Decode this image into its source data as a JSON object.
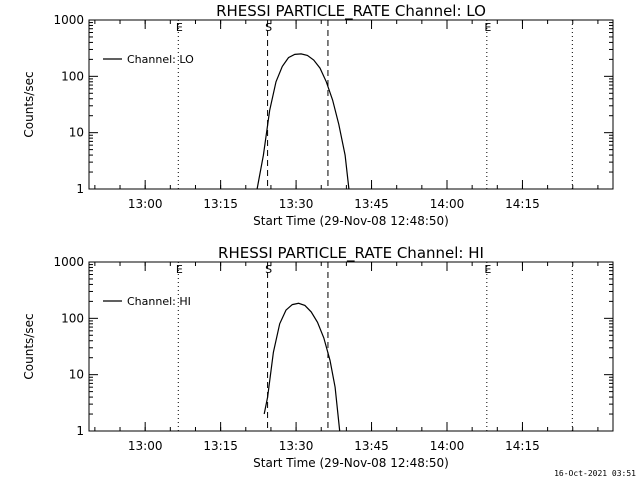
{
  "chart_data": [
    {
      "type": "line",
      "title": "RHESSI PARTICLE_RATE Channel: LO",
      "xlabel": "Start Time (29-Nov-08 12:48:50)",
      "ylabel": "Counts/sec",
      "xlim": [
        "12:48:50",
        "14:33:00"
      ],
      "ylim": [
        1,
        1000
      ],
      "yscale": "log",
      "x_ticks": [
        "13:00",
        "13:15",
        "13:30",
        "13:45",
        "14:00",
        "14:15"
      ],
      "y_ticks": [
        "1",
        "10",
        "100",
        "1000"
      ],
      "legend": {
        "position": "top-left",
        "label": "Channel: LO"
      },
      "series": [
        {
          "name": "Channel: LO",
          "x": [
            "13:22:15",
            "13:23:30",
            "13:24:45",
            "13:26:00",
            "13:27:15",
            "13:28:30",
            "13:29:45",
            "13:31:00",
            "13:32:15",
            "13:33:30",
            "13:34:45",
            "13:36:00",
            "13:37:15",
            "13:38:30",
            "13:39:45",
            "13:40:30"
          ],
          "y": [
            1,
            4,
            25,
            80,
            150,
            215,
            245,
            250,
            235,
            195,
            140,
            80,
            38,
            14,
            4,
            1
          ]
        }
      ],
      "markers": [
        {
          "time": "13:06:35",
          "style": "dotted",
          "label": "E"
        },
        {
          "time": "13:24:20",
          "style": "dashed",
          "label": "S"
        },
        {
          "time": "13:36:20",
          "style": "dashed",
          "label": ""
        },
        {
          "time": "14:07:55",
          "style": "dotted",
          "label": "E"
        },
        {
          "time": "14:24:55",
          "style": "dotted",
          "label": ""
        }
      ]
    },
    {
      "type": "line",
      "title": "RHESSI PARTICLE_RATE Channel: HI",
      "xlabel": "Start Time (29-Nov-08 12:48:50)",
      "ylabel": "Counts/sec",
      "xlim": [
        "12:48:50",
        "14:33:00"
      ],
      "ylim": [
        1,
        1000
      ],
      "yscale": "log",
      "x_ticks": [
        "13:00",
        "13:15",
        "13:30",
        "13:45",
        "14:00",
        "14:15"
      ],
      "y_ticks": [
        "1",
        "10",
        "100",
        "1000"
      ],
      "legend": {
        "position": "top-left",
        "label": "Channel: HI"
      },
      "series": [
        {
          "name": "Channel: HI",
          "x": [
            "13:23:40",
            "13:24:20",
            "13:25:30",
            "13:26:45",
            "13:28:00",
            "13:29:15",
            "13:30:30",
            "13:31:45",
            "13:33:00",
            "13:34:15",
            "13:35:30",
            "13:36:45",
            "13:37:45",
            "13:38:40"
          ],
          "y": [
            2,
            4,
            25,
            80,
            140,
            175,
            185,
            170,
            130,
            85,
            45,
            18,
            6,
            1
          ]
        }
      ],
      "markers": [
        {
          "time": "13:06:35",
          "style": "dotted",
          "label": "E"
        },
        {
          "time": "13:24:20",
          "style": "dashed",
          "label": "S"
        },
        {
          "time": "13:36:20",
          "style": "dashed",
          "label": ""
        },
        {
          "time": "14:07:55",
          "style": "dotted",
          "label": "E"
        },
        {
          "time": "14:24:55",
          "style": "dotted",
          "label": ""
        }
      ]
    }
  ],
  "footer": "16-Oct-2021 03:51"
}
